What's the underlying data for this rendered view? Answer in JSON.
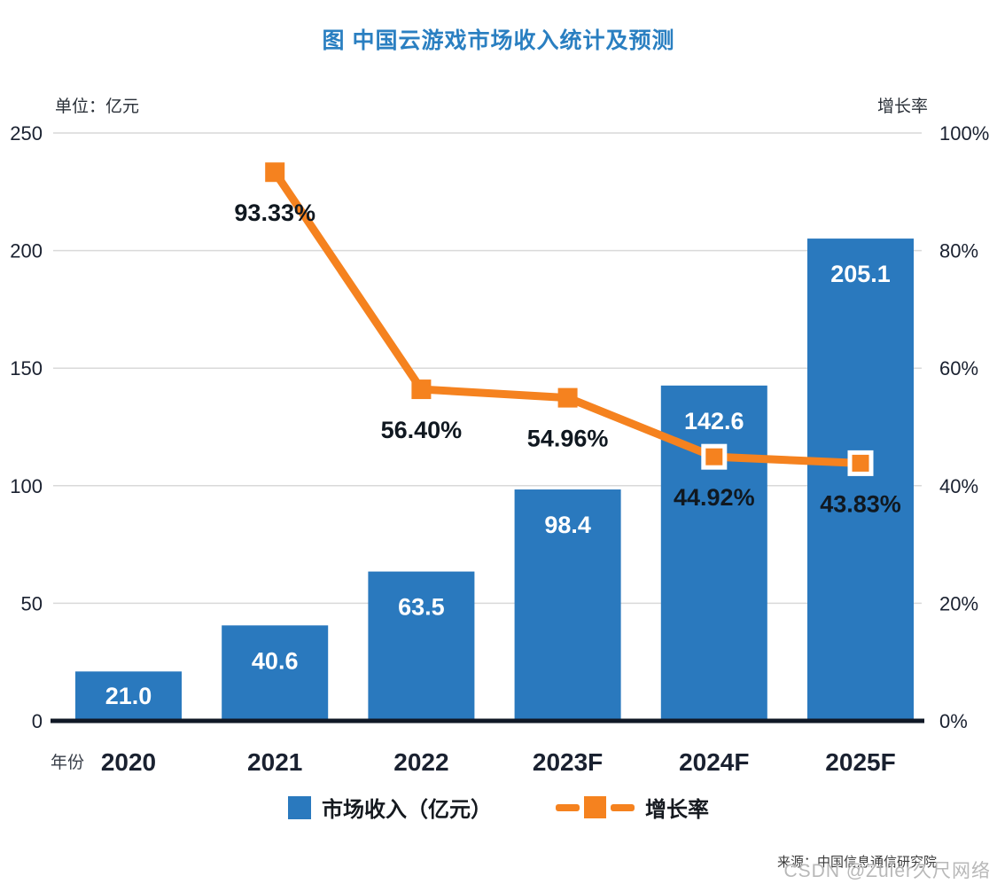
{
  "title": "图  中国云游戏市场收入统计及预测",
  "left_axis_unit": "单位：亿元",
  "right_axis_unit": "增长率",
  "source": "来源：中国信息通信研究院",
  "watermark": "CSDN @Zuler久尺网络",
  "legend": {
    "revenue_label": "市场收入（亿元）",
    "growth_label": "增长率"
  },
  "colors": {
    "bar_blue": "#2A79BE",
    "line_orange": "#F5821F",
    "title_blue": "#2A7FC1",
    "grid_gray": "#D9D9D9",
    "axis_black": "#101826",
    "text_dark": "#1A2130",
    "bar_label_white": "#FFFFFF"
  },
  "chart_data": {
    "type": "bar+line combo",
    "title": "图 中国云游戏市场收入统计及预测",
    "x_axis_title": "年份",
    "categories": [
      "2020",
      "2021",
      "2022",
      "2023F",
      "2024F",
      "2025F"
    ],
    "series": [
      {
        "name": "市场收入（亿元）",
        "type": "bar",
        "axis": "left",
        "values": [
          21.0,
          40.6,
          63.5,
          98.4,
          142.6,
          205.1
        ],
        "labels": [
          "21.0",
          "40.6",
          "63.5",
          "98.4",
          "142.6",
          "205.1"
        ]
      },
      {
        "name": "增长率",
        "type": "line",
        "axis": "right",
        "values": [
          null,
          93.33,
          56.4,
          54.96,
          44.92,
          43.83
        ],
        "labels": [
          null,
          "93.33%",
          "56.40%",
          "54.96%",
          "44.92%",
          "43.83%"
        ],
        "marker_white_border": [
          false,
          false,
          false,
          false,
          true,
          true
        ]
      }
    ],
    "left_axis": {
      "label": "单位：亿元",
      "min": 0,
      "max": 250,
      "ticks": [
        "0",
        "50",
        "100",
        "150",
        "200",
        "250"
      ]
    },
    "right_axis": {
      "label": "增长率",
      "min": 0,
      "max": 100,
      "ticks": [
        "0%",
        "20%",
        "40%",
        "60%",
        "80%",
        "100%"
      ]
    },
    "grid": true,
    "legend_position": "bottom"
  }
}
